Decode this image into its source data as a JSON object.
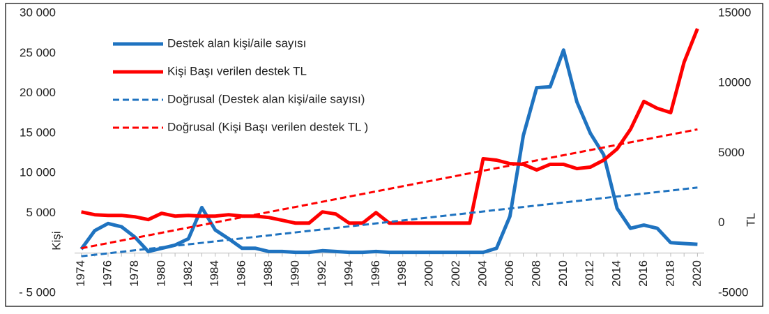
{
  "chart_data": {
    "type": "line",
    "x": [
      1974,
      1975,
      1976,
      1977,
      1978,
      1979,
      1980,
      1981,
      1982,
      1983,
      1984,
      1985,
      1986,
      1987,
      1988,
      1989,
      1990,
      1991,
      1992,
      1993,
      1994,
      1995,
      1996,
      1997,
      1998,
      1999,
      2000,
      2001,
      2002,
      2003,
      2004,
      2005,
      2006,
      2007,
      2008,
      2009,
      2010,
      2011,
      2012,
      2013,
      2014,
      2015,
      2016,
      2017,
      2018,
      2019,
      2020
    ],
    "xlim": [
      1973.5,
      2020.5
    ],
    "xticks": [
      1974,
      1976,
      1978,
      1980,
      1982,
      1984,
      1986,
      1988,
      1990,
      1992,
      1994,
      1996,
      1998,
      2000,
      2002,
      2004,
      2006,
      2008,
      2010,
      2012,
      2014,
      2016,
      2018,
      2020
    ],
    "ylim": [
      -5000,
      30000
    ],
    "yticks": [
      {
        "value": -5000,
        "label": "- 5 000"
      },
      {
        "value": 5000,
        "label": "5 000"
      },
      {
        "value": 10000,
        "label": "10 000"
      },
      {
        "value": 15000,
        "label": "15 000"
      },
      {
        "value": 20000,
        "label": "20 000"
      },
      {
        "value": 25000,
        "label": "25 000"
      },
      {
        "value": 30000,
        "label": "30 000"
      }
    ],
    "y2lim": [
      -5000,
      15000
    ],
    "y2ticks": [
      -5000,
      0,
      5000,
      10000,
      15000
    ],
    "ylabel": "Kişi",
    "y2label": "TL",
    "legend": "top-left",
    "series": [
      {
        "name": "Destek alan kişi/aile sayısı",
        "color": "#1f73c0",
        "dashed": false,
        "values": [
          500,
          2800,
          3700,
          3300,
          2000,
          200,
          600,
          1000,
          1800,
          5700,
          2900,
          1800,
          600,
          600,
          200,
          200,
          100,
          100,
          300,
          200,
          100,
          100,
          200,
          100,
          100,
          100,
          100,
          100,
          100,
          100,
          100,
          600,
          4600,
          14700,
          20700,
          20800,
          25400,
          18900,
          15000,
          12300,
          5600,
          3100,
          3500,
          3100,
          1300,
          1200,
          1100
        ]
      },
      {
        "name": "Kişi Başı verilen destek TL",
        "color": "#ff0000",
        "axis": "y2",
        "dashed": false,
        "values": [
          800,
          600,
          550,
          550,
          450,
          250,
          700,
          500,
          550,
          500,
          500,
          600,
          500,
          500,
          400,
          200,
          0,
          0,
          800,
          650,
          0,
          0,
          750,
          0,
          0,
          0,
          0,
          0,
          0,
          0,
          4600,
          4500,
          4250,
          4200,
          3800,
          4200,
          4200,
          3900,
          4000,
          4500,
          5300,
          6700,
          8700,
          8200,
          7900,
          11500,
          13900
        ]
      },
      {
        "name": "Doğrusal (Destek alan kişi/aile sayısı)",
        "color": "#1f73c0",
        "dashed": true,
        "x": [
          1974,
          2020
        ],
        "values": [
          -400,
          8200
        ]
      },
      {
        "name": "Doğrusal (Kişi Başı verilen destek TL )",
        "color": "#ff0000",
        "axis": "y2",
        "dashed": true,
        "x": [
          1974,
          2020
        ],
        "values": [
          -1800,
          6700
        ]
      }
    ]
  }
}
